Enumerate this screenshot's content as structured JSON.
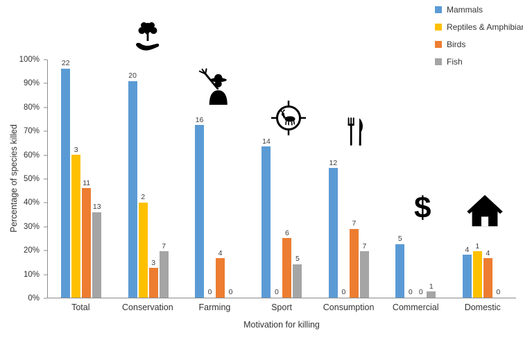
{
  "chart_data": {
    "type": "bar",
    "title": "",
    "xlabel": "Motivation for killing",
    "ylabel": "Percentage of species killed",
    "ylim": [
      0,
      100
    ],
    "grid": false,
    "legend_position": "top-right",
    "y_ticks": [
      "0%",
      "10%",
      "20%",
      "30%",
      "40%",
      "50%",
      "60%",
      "70%",
      "80%",
      "90%",
      "100%"
    ],
    "categories": [
      "Total",
      "Conservation",
      "Farming",
      "Sport",
      "Consumption",
      "Commercial",
      "Domestic"
    ],
    "series": [
      {
        "name": "Mammals",
        "color": "#5B9BD5",
        "bar_labels": [
          22,
          20,
          16,
          14,
          12,
          5,
          4
        ],
        "percent_values": [
          100,
          91,
          72.5,
          63.5,
          54.5,
          22.5,
          18
        ]
      },
      {
        "name": "Reptiles & Amphibians",
        "color": "#FFC000",
        "bar_labels": [
          3,
          2,
          0,
          0,
          0,
          0,
          1
        ],
        "percent_values": [
          60,
          40,
          0,
          0,
          0,
          0,
          19.5
        ]
      },
      {
        "name": "Birds",
        "color": "#ED7D31",
        "bar_labels": [
          11,
          3,
          4,
          6,
          7,
          0,
          4
        ],
        "percent_values": [
          46,
          12.5,
          16.5,
          25,
          29,
          0,
          16.5
        ]
      },
      {
        "name": "Fish",
        "color": "#A5A5A5",
        "bar_labels": [
          13,
          7,
          0,
          5,
          7,
          1,
          0
        ],
        "percent_values": [
          36,
          19.5,
          0,
          14,
          19.5,
          2.5,
          0
        ]
      }
    ],
    "icons": [
      {
        "name": "plant-in-hand-icon",
        "category": "Conservation"
      },
      {
        "name": "farmer-icon",
        "category": "Farming"
      },
      {
        "name": "deer-crosshair-icon",
        "category": "Sport"
      },
      {
        "name": "fork-knife-icon",
        "category": "Consumption"
      },
      {
        "name": "dollar-sign-icon",
        "category": "Commercial",
        "glyph": "$"
      },
      {
        "name": "house-icon",
        "category": "Domestic"
      }
    ]
  }
}
